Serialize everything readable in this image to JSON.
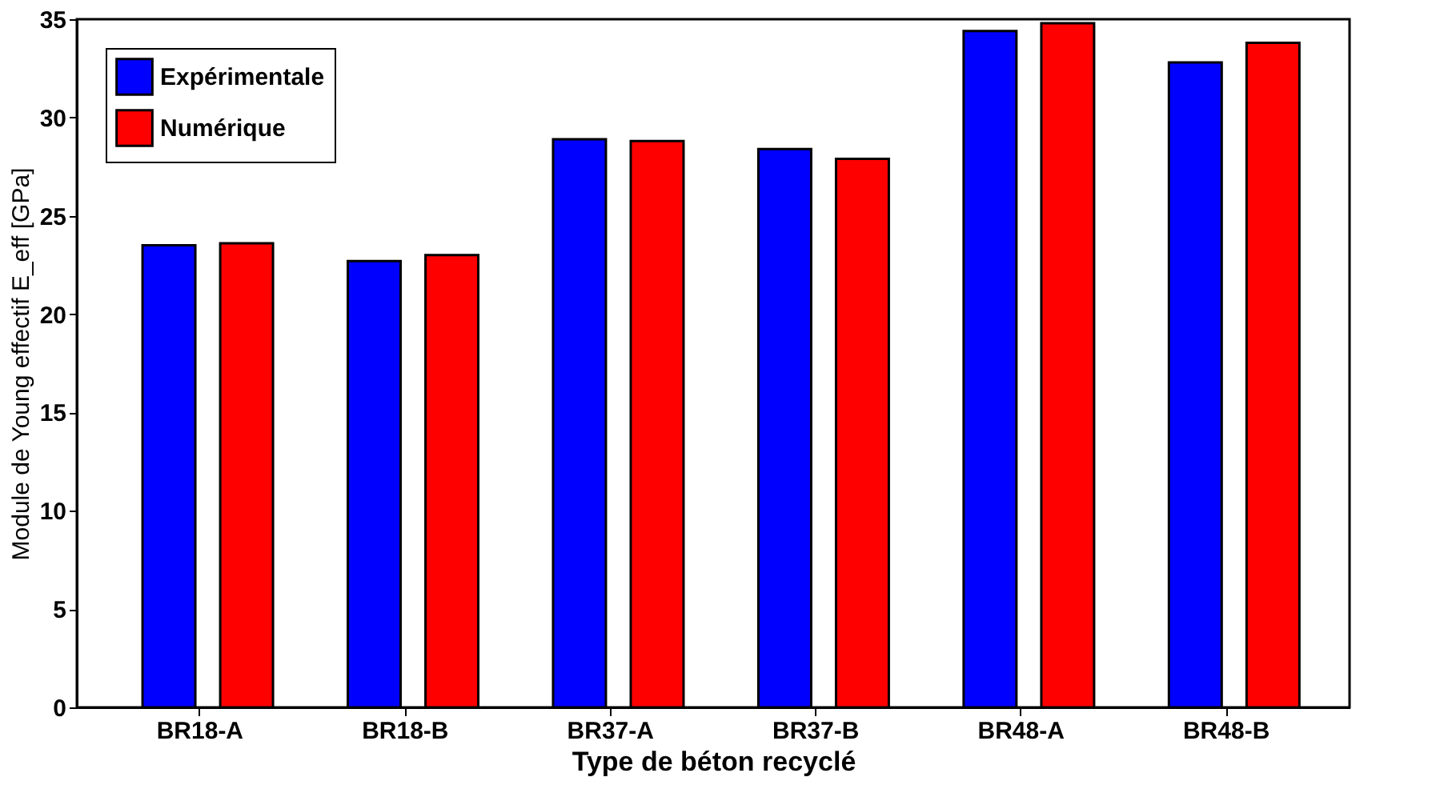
{
  "chart_data": {
    "type": "bar",
    "xlabel": "Type de béton recyclé",
    "ylabel": "Module de Young effectif E_eff [GPa]",
    "categories": [
      "BR18-A",
      "BR18-B",
      "BR37-A",
      "BR37-B",
      "BR48-A",
      "BR48-B"
    ],
    "series": [
      {
        "name": "Expérimentale",
        "color": "#0000ff",
        "values": [
          23.5,
          22.7,
          28.9,
          28.4,
          34.4,
          32.8
        ]
      },
      {
        "name": "Numérique",
        "color": "#ff0000",
        "values": [
          23.6,
          23.0,
          28.8,
          27.9,
          34.8,
          33.8
        ]
      }
    ],
    "ylim": [
      0,
      35
    ],
    "yticks": [
      0,
      5,
      10,
      15,
      20,
      25,
      30,
      35
    ],
    "grid": false,
    "legend": "top left"
  }
}
